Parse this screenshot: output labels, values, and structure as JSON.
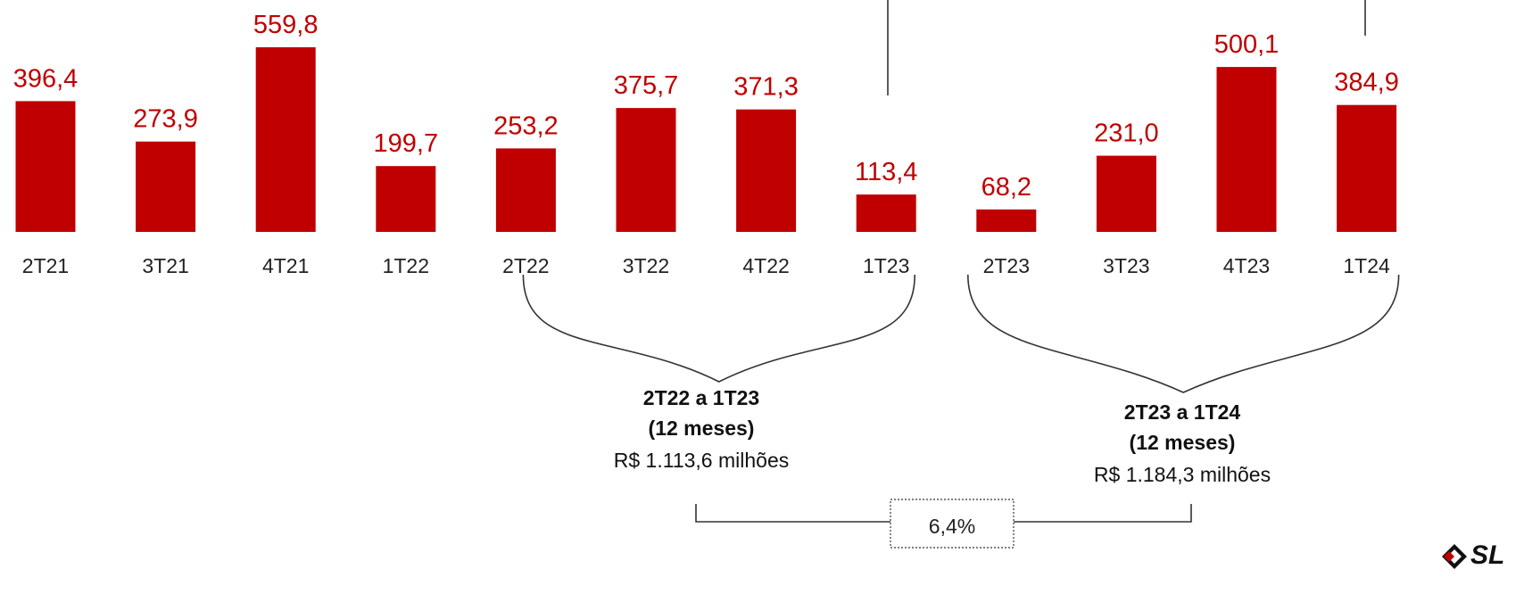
{
  "chart_data": {
    "type": "bar",
    "categories": [
      "2T21",
      "3T21",
      "4T21",
      "1T22",
      "2T22",
      "3T22",
      "4T22",
      "1T23",
      "2T23",
      "3T23",
      "4T23",
      "1T24"
    ],
    "values": [
      396.4,
      273.9,
      559.8,
      199.7,
      253.2,
      375.7,
      371.3,
      113.4,
      68.2,
      231.0,
      500.1,
      384.9
    ],
    "value_labels": [
      "396,4",
      "273,9",
      "559,8",
      "199,7",
      "253,2",
      "375,7",
      "371,3",
      "113,4",
      "68,2",
      "231,0",
      "500,1",
      "384,9"
    ],
    "bar_color": "#c00000",
    "label_color": "#c00000",
    "ylim": [
      0,
      600
    ],
    "title": "",
    "xlabel": "",
    "ylabel": "",
    "grid": false,
    "groups": [
      {
        "period": "2T22 a 1T23",
        "duration": "(12 meses)",
        "amount": "R$ 1.113,6 milhões",
        "from_category": "2T22",
        "to_category": "1T23"
      },
      {
        "period": "2T23 a 1T24",
        "duration": "(12 meses)",
        "amount": "R$ 1.184,3 milhões",
        "from_category": "2T23",
        "to_category": "1T24"
      }
    ],
    "comparison": "6,4%"
  },
  "logo": {
    "text": "SL",
    "colors": [
      "#c00000",
      "#111111"
    ]
  }
}
